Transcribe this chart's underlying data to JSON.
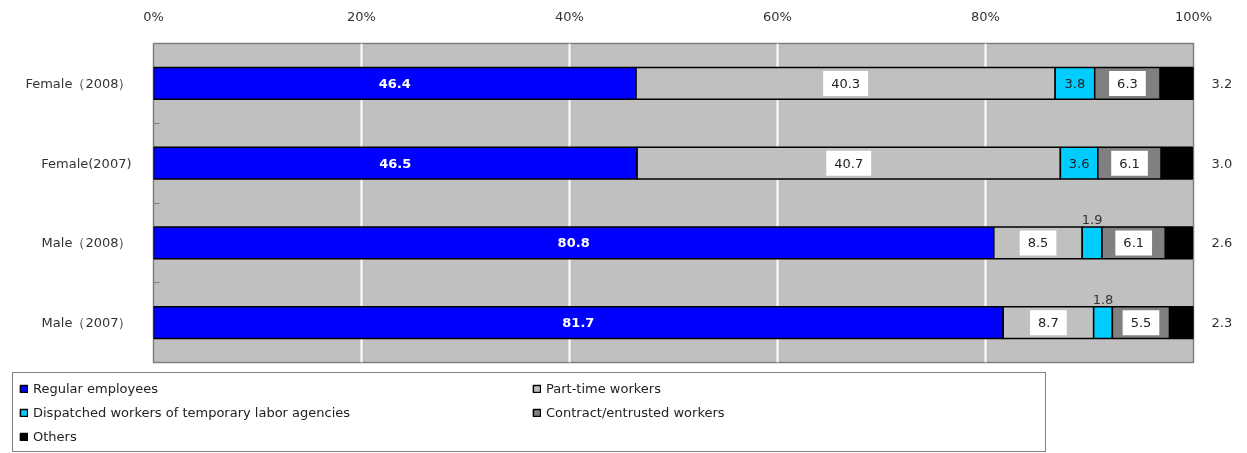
{
  "chart_data": {
    "type": "bar",
    "orientation": "horizontal",
    "stacked": true,
    "categories": [
      "Female（2008）",
      "Female(2007)",
      "Male（2008）",
      "Male（2007）"
    ],
    "series": [
      {
        "name": "Regular employees",
        "color": "#0000ff",
        "values": [
          46.4,
          46.5,
          80.8,
          81.7
        ],
        "value_labels": [
          "46.4",
          "46.5",
          "80.8",
          "81.7"
        ]
      },
      {
        "name": "Part-time workers",
        "color": "#c0c0c0",
        "values": [
          40.3,
          40.7,
          8.5,
          8.7
        ],
        "value_labels": [
          "40.3",
          "40.7",
          "8.5",
          "8.7"
        ]
      },
      {
        "name": "Dispatched workers of temporary labor agencies",
        "color": "#00ccff",
        "values": [
          3.8,
          3.6,
          1.9,
          1.8
        ],
        "value_labels": [
          "3.8",
          "3.6",
          "1.9",
          "1.8"
        ]
      },
      {
        "name": "Contract/entrusted workers",
        "color": "#808080",
        "values": [
          6.3,
          6.1,
          6.1,
          5.5
        ],
        "value_labels": [
          "6.3",
          "6.1",
          "6.1",
          "5.5"
        ]
      },
      {
        "name": "Others",
        "color": "#000000",
        "values": [
          3.2,
          3.0,
          2.6,
          2.3
        ],
        "value_labels": [
          "3.2",
          "3.0",
          "2.6",
          "2.3"
        ]
      }
    ],
    "xlim": [
      0,
      100
    ],
    "xticks": [
      {
        "value": 0,
        "label": "0%"
      },
      {
        "value": 20,
        "label": "20%"
      },
      {
        "value": 40,
        "label": "40%"
      },
      {
        "value": 60,
        "label": "60%"
      },
      {
        "value": 80,
        "label": "80%"
      },
      {
        "value": 100,
        "label": "100%"
      }
    ],
    "grid": "x",
    "legend": "bottom"
  }
}
